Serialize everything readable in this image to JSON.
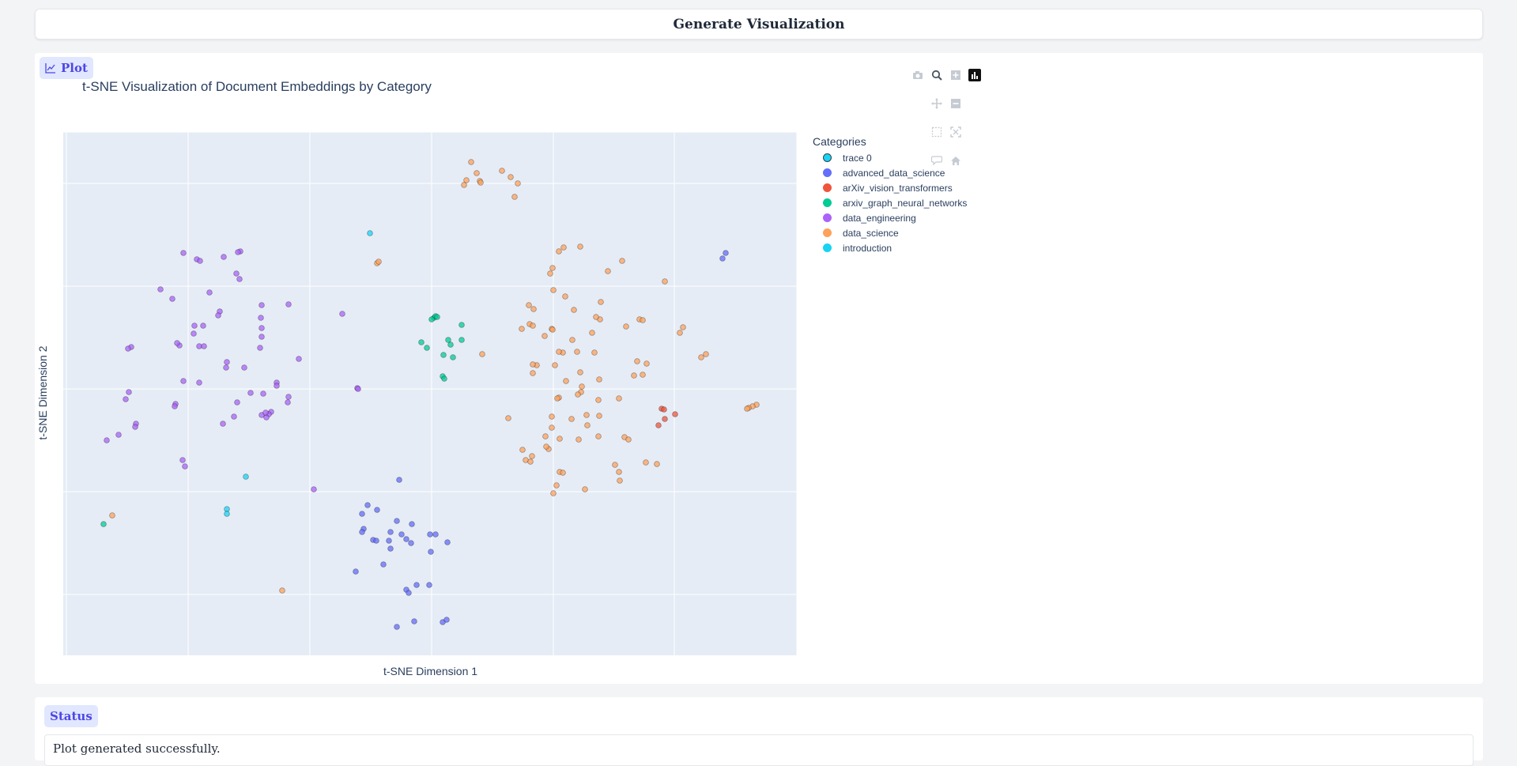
{
  "actions": {
    "generate_label": "Generate Visualization"
  },
  "plot_section": {
    "badge_label": "Plot"
  },
  "status_section": {
    "badge_label": "Status",
    "message": "Plot generated successfully."
  },
  "colors": {
    "trace 0": "#00cc96",
    "advanced_data_science": "#636efa",
    "arXiv_vision_transformers": "#ef553b",
    "arxiv_graph_neural_networks": "#00cc96",
    "data_engineering": "#ab63fa",
    "data_science": "#ffa15a",
    "introduction": "#19d3f3"
  },
  "modebar": [
    "camera-icon",
    "zoom-icon",
    "zoom-in-icon",
    "plotly-logo-icon",
    "pan-icon",
    "zoom-out-icon",
    "box-select-icon",
    "autoscale-icon",
    "hover-icon",
    "home-icon"
  ],
  "chart_data": {
    "type": "scatter",
    "title": "t-SNE Visualization of Document Embeddings by Category",
    "xlabel": "t-SNE Dimension 1",
    "ylabel": "t-SNE Dimension 2",
    "grid": true,
    "legend_title": "Categories",
    "legend_position": "right",
    "series": [
      {
        "name": "trace 0",
        "points": []
      },
      {
        "name": "advanced_data_science",
        "points": [
          [
            918,
            320
          ],
          [
            914,
            327
          ],
          [
            505,
            607
          ],
          [
            465,
            639
          ],
          [
            477,
            645
          ],
          [
            458,
            650
          ],
          [
            502,
            659
          ],
          [
            521,
            663
          ],
          [
            494,
            673
          ],
          [
            460,
            669
          ],
          [
            472,
            683
          ],
          [
            458,
            673
          ],
          [
            476,
            684
          ],
          [
            492,
            684
          ],
          [
            508,
            676
          ],
          [
            520,
            687
          ],
          [
            544,
            676
          ],
          [
            551,
            676
          ],
          [
            566,
            686
          ],
          [
            514,
            682
          ],
          [
            494,
            694
          ],
          [
            545,
            698
          ],
          [
            485,
            714
          ],
          [
            450,
            723
          ],
          [
            527,
            740
          ],
          [
            514,
            746
          ],
          [
            543,
            740
          ],
          [
            517,
            750
          ],
          [
            560,
            787
          ],
          [
            565,
            784
          ],
          [
            502,
            793
          ],
          [
            524,
            786
          ]
        ]
      },
      {
        "name": "arXiv_vision_transformers",
        "points": [
          [
            837,
            517
          ],
          [
            840,
            518
          ],
          [
            854,
            524
          ],
          [
            841,
            530
          ],
          [
            833,
            538
          ]
        ]
      },
      {
        "name": "arxiv_graph_neural_networks",
        "points": [
          [
            549,
            402
          ],
          [
            551,
            400
          ],
          [
            546,
            404
          ],
          [
            553,
            401
          ],
          [
            584,
            411
          ],
          [
            533,
            433
          ],
          [
            540,
            440
          ],
          [
            567,
            430
          ],
          [
            570,
            436
          ],
          [
            584,
            430
          ],
          [
            573,
            452
          ],
          [
            561,
            449
          ],
          [
            560,
            476
          ],
          [
            562,
            479
          ],
          [
            131,
            663
          ]
        ]
      },
      {
        "name": "data_engineering",
        "points": [
          [
            232,
            320
          ],
          [
            249,
            328
          ],
          [
            253,
            330
          ],
          [
            283,
            325
          ],
          [
            304,
            318
          ],
          [
            301,
            319
          ],
          [
            299,
            346
          ],
          [
            303,
            353
          ],
          [
            203,
            366
          ],
          [
            218,
            378
          ],
          [
            265,
            370
          ],
          [
            278,
            394
          ],
          [
            276,
            399
          ],
          [
            257,
            412
          ],
          [
            331,
            386
          ],
          [
            365,
            385
          ],
          [
            246,
            412
          ],
          [
            245,
            422
          ],
          [
            227,
            437
          ],
          [
            224,
            434
          ],
          [
            433,
            397
          ],
          [
            330,
            402
          ],
          [
            331,
            415
          ],
          [
            331,
            426
          ],
          [
            329,
            440
          ],
          [
            252,
            438
          ],
          [
            258,
            438
          ],
          [
            166,
            439
          ],
          [
            162,
            441
          ],
          [
            287,
            458
          ],
          [
            286,
            465
          ],
          [
            309,
            465
          ],
          [
            252,
            484
          ],
          [
            232,
            482
          ],
          [
            350,
            484
          ],
          [
            350,
            488
          ],
          [
            317,
            497
          ],
          [
            333,
            498
          ],
          [
            378,
            454
          ],
          [
            163,
            496
          ],
          [
            159,
            505
          ],
          [
            222,
            511
          ],
          [
            221,
            514
          ],
          [
            300,
            509
          ],
          [
            365,
            502
          ],
          [
            364,
            509
          ],
          [
            343,
            521
          ],
          [
            340,
            524
          ],
          [
            337,
            528
          ],
          [
            331,
            525
          ],
          [
            336,
            522
          ],
          [
            172,
            536
          ],
          [
            171,
            540
          ],
          [
            296,
            527
          ],
          [
            282,
            536
          ],
          [
            150,
            550
          ],
          [
            135,
            557
          ],
          [
            231,
            582
          ],
          [
            234,
            590
          ],
          [
            452,
            491
          ],
          [
            453,
            492
          ],
          [
            397,
            619
          ]
        ]
      },
      {
        "name": "data_science",
        "points": [
          [
            596,
            205
          ],
          [
            603,
            219
          ],
          [
            635,
            216
          ],
          [
            646,
            224
          ],
          [
            590,
            228
          ],
          [
            587,
            234
          ],
          [
            607,
            229
          ],
          [
            608,
            231
          ],
          [
            655,
            232
          ],
          [
            651,
            249
          ],
          [
            477,
            333
          ],
          [
            479,
            331
          ],
          [
            713,
            313
          ],
          [
            707,
            318
          ],
          [
            734,
            312
          ],
          [
            787,
            330
          ],
          [
            699,
            339
          ],
          [
            696,
            346
          ],
          [
            769,
            343
          ],
          [
            841,
            356
          ],
          [
            700,
            367
          ],
          [
            715,
            375
          ],
          [
            726,
            392
          ],
          [
            760,
            382
          ],
          [
            669,
            386
          ],
          [
            675,
            391
          ],
          [
            759,
            404
          ],
          [
            670,
            410
          ],
          [
            754,
            401
          ],
          [
            809,
            404
          ],
          [
            813,
            405
          ],
          [
            660,
            416
          ],
          [
            792,
            413
          ],
          [
            864,
            414
          ],
          [
            674,
            412
          ],
          [
            698,
            416
          ],
          [
            749,
            421
          ],
          [
            860,
            421
          ],
          [
            610,
            448
          ],
          [
            699,
            417
          ],
          [
            724,
            430
          ],
          [
            689,
            425
          ],
          [
            893,
            448
          ],
          [
            887,
            452
          ],
          [
            679,
            462
          ],
          [
            712,
            446
          ],
          [
            730,
            445
          ],
          [
            674,
            461
          ],
          [
            707,
            445
          ],
          [
            752,
            446
          ],
          [
            806,
            457
          ],
          [
            813,
            474
          ],
          [
            674,
            472
          ],
          [
            734,
            471
          ],
          [
            702,
            462
          ],
          [
            818,
            460
          ],
          [
            802,
            475
          ],
          [
            758,
            480
          ],
          [
            736,
            489
          ],
          [
            716,
            482
          ],
          [
            735,
            496
          ],
          [
            707,
            503
          ],
          [
            783,
            504
          ],
          [
            731,
            499
          ],
          [
            705,
            504
          ],
          [
            643,
            529
          ],
          [
            757,
            506
          ],
          [
            698,
            527
          ],
          [
            723,
            530
          ],
          [
            742,
            525
          ],
          [
            698,
            541
          ],
          [
            758,
            526
          ],
          [
            743,
            538
          ],
          [
            661,
            569
          ],
          [
            690,
            552
          ],
          [
            732,
            556
          ],
          [
            757,
            552
          ],
          [
            708,
            555
          ],
          [
            694,
            568
          ],
          [
            790,
            553
          ],
          [
            691,
            565
          ],
          [
            665,
            582
          ],
          [
            708,
            597
          ],
          [
            673,
            577
          ],
          [
            671,
            584
          ],
          [
            778,
            588
          ],
          [
            831,
            587
          ],
          [
            783,
            597
          ],
          [
            795,
            556
          ],
          [
            817,
            585
          ],
          [
            784,
            608
          ],
          [
            740,
            619
          ],
          [
            712,
            598
          ],
          [
            704,
            614
          ],
          [
            700,
            624
          ],
          [
            142,
            652
          ],
          [
            357,
            747
          ],
          [
            957,
            512
          ],
          [
            952,
            514
          ],
          [
            947,
            516
          ],
          [
            945,
            517
          ]
        ]
      },
      {
        "name": "introduction",
        "points": [
          [
            468,
            295
          ],
          [
            311,
            603
          ],
          [
            287,
            644
          ],
          [
            287,
            650
          ]
        ]
      }
    ]
  }
}
